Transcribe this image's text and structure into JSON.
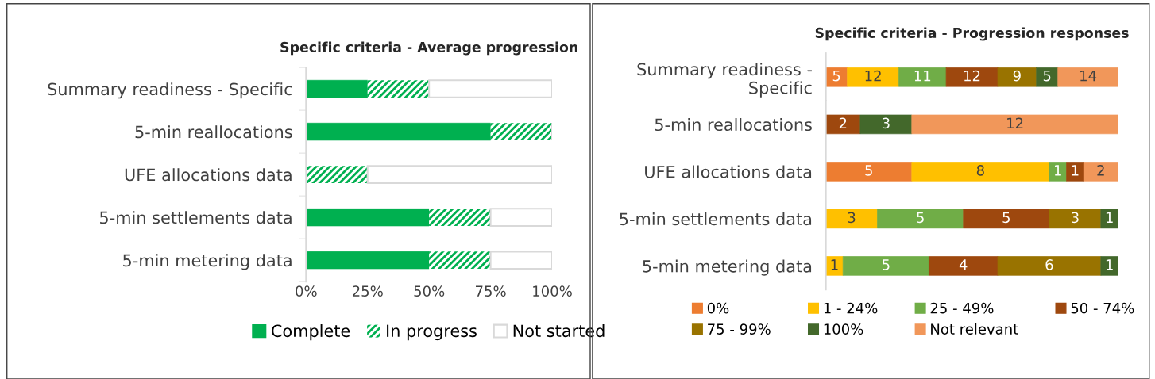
{
  "chart_data": [
    {
      "type": "bar",
      "orientation": "horizontal",
      "stacked": true,
      "title": "Specific criteria - Average progression",
      "categories": [
        "Summary readiness - Specific",
        "5-min reallocations",
        "UFE allocations data",
        "5-min settlements data",
        "5-min metering data"
      ],
      "series": [
        {
          "name": "Complete",
          "color": "#00b050",
          "values": [
            25,
            75,
            0,
            50,
            50
          ]
        },
        {
          "name": "In progress",
          "color": "#00b050",
          "values": [
            25,
            25,
            25,
            25,
            25
          ]
        },
        {
          "name": "Not started",
          "color": "#d9d9d9",
          "values": [
            50,
            0,
            75,
            25,
            25
          ]
        }
      ],
      "xlim": [
        0,
        100
      ],
      "xticks": [
        {
          "value": 0,
          "label": "0%"
        },
        {
          "value": 25,
          "label": "25%"
        },
        {
          "value": 50,
          "label": "50%"
        },
        {
          "value": 75,
          "label": "75%"
        },
        {
          "value": 100,
          "label": "100%"
        }
      ],
      "legend": "bottom",
      "grid": false
    },
    {
      "type": "bar",
      "orientation": "horizontal",
      "stacked": true,
      "data_labels": true,
      "title": "Specific criteria - Progression responses",
      "categories": [
        "Summary readiness -\nSpecific"
      ],
      "series": [
        {
          "color": "#ed7d31",
          "values": [
            5
          ]
        },
        {
          "color": "#ffc000",
          "values": [
            12
          ]
        },
        {
          "color": "#70ad47",
          "values": [
            11
          ]
        },
        {
          "color": "#9e480e",
          "values": [
            12
          ]
        },
        {
          "color": "#997300",
          "values": [
            9
          ]
        },
        {
          "color": "#43682b",
          "values": [
            5
          ]
        },
        {
          "color": "#f1975a",
          "values": [
            14
          ]
        }
      ],
      "xlim": [
        0,
        68
      ],
      "tick_labels": "y",
      "grid": false
    },
    {
      "type": "bar",
      "orientation": "horizontal",
      "stacked": true,
      "data_labels": true,
      "categories": [
        "5-min reallocations",
        "UFE allocations data",
        "5-min settlements data",
        "5-min metering data"
      ],
      "series": [
        {
          "name": "0%",
          "color": "#ed7d31",
          "values": [
            null,
            5,
            null,
            null
          ]
        },
        {
          "name": "1 - 24%",
          "color": "#ffc000",
          "values": [
            null,
            8,
            3,
            1
          ]
        },
        {
          "name": "25 - 49%",
          "color": "#70ad47",
          "values": [
            null,
            1,
            5,
            5
          ]
        },
        {
          "name": "50 - 74%",
          "color": "#9e480e",
          "values": [
            2,
            1,
            5,
            4
          ]
        },
        {
          "name": "75 - 99%",
          "color": "#997300",
          "values": [
            null,
            null,
            3,
            6
          ]
        },
        {
          "name": "100%",
          "color": "#43682b",
          "values": [
            3,
            null,
            1,
            1
          ]
        },
        {
          "name": "Not relevant",
          "color": "#f1975a",
          "values": [
            12,
            2,
            null,
            null
          ]
        }
      ],
      "xlim": [
        0,
        17
      ],
      "tick_labels": "y",
      "legend": "bottom",
      "grid": false
    }
  ]
}
